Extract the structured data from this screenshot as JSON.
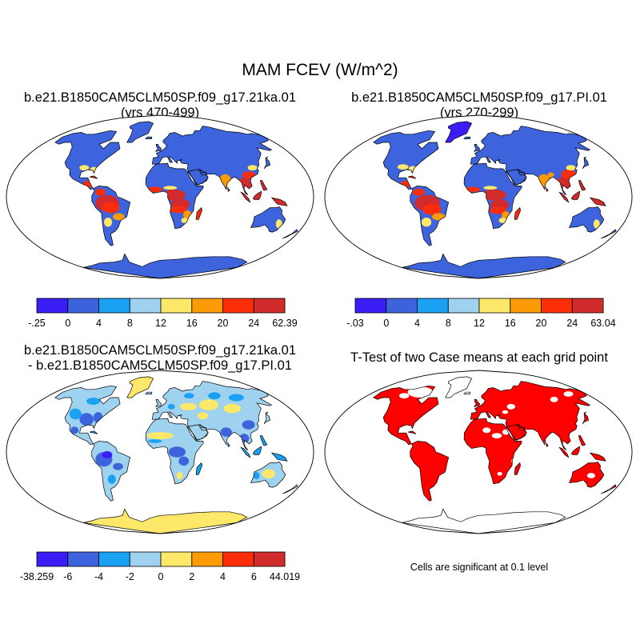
{
  "title": "MAM FCEV (W/m^2)",
  "panels": [
    {
      "id": "case1",
      "title_line1": "b.e21.B1850CAM5CLM50SP.f09_g17.21ka.01",
      "title_line2": "(yrs 470-499)",
      "colorbar": {
        "labels": [
          "-.25",
          "0",
          "4",
          "8",
          "12",
          "16",
          "20",
          "24",
          "62.39"
        ],
        "colors": [
          "#3a1ef5",
          "#3d63dd",
          "#1aa1f3",
          "#9fd2ee",
          "#fde86a",
          "#fb9c06",
          "#fc2e09",
          "#d22b2b"
        ]
      }
    },
    {
      "id": "case2",
      "title_line1": "b.e21.B1850CAM5CLM50SP.f09_g17.PI.01",
      "title_line2": "(yrs 270-299)",
      "colorbar": {
        "labels": [
          "-.03",
          "0",
          "4",
          "8",
          "12",
          "16",
          "20",
          "24",
          "63.04"
        ],
        "colors": [
          "#3a1ef5",
          "#3d63dd",
          "#1aa1f3",
          "#9fd2ee",
          "#fde86a",
          "#fb9c06",
          "#fc2e09",
          "#d22b2b"
        ]
      }
    },
    {
      "id": "difference",
      "title_line1": "b.e21.B1850CAM5CLM50SP.f09_g17.21ka.01",
      "title_line2": "- b.e21.B1850CAM5CLM50SP.f09_g17.PI.01",
      "colorbar": {
        "labels": [
          "-38.259",
          "-6",
          "-4",
          "-2",
          "0",
          "2",
          "4",
          "6",
          "44.019"
        ],
        "colors": [
          "#3a1ef5",
          "#3d63dd",
          "#1aa1f3",
          "#9fd2ee",
          "#fde86a",
          "#fb9c06",
          "#fc2e09",
          "#d22b2b"
        ]
      }
    },
    {
      "id": "ttest",
      "title_line1": "T-Test of two Case means at each grid point",
      "note": "Cells are significant at 0.1 level",
      "significant_color": "#ff0000"
    }
  ]
}
